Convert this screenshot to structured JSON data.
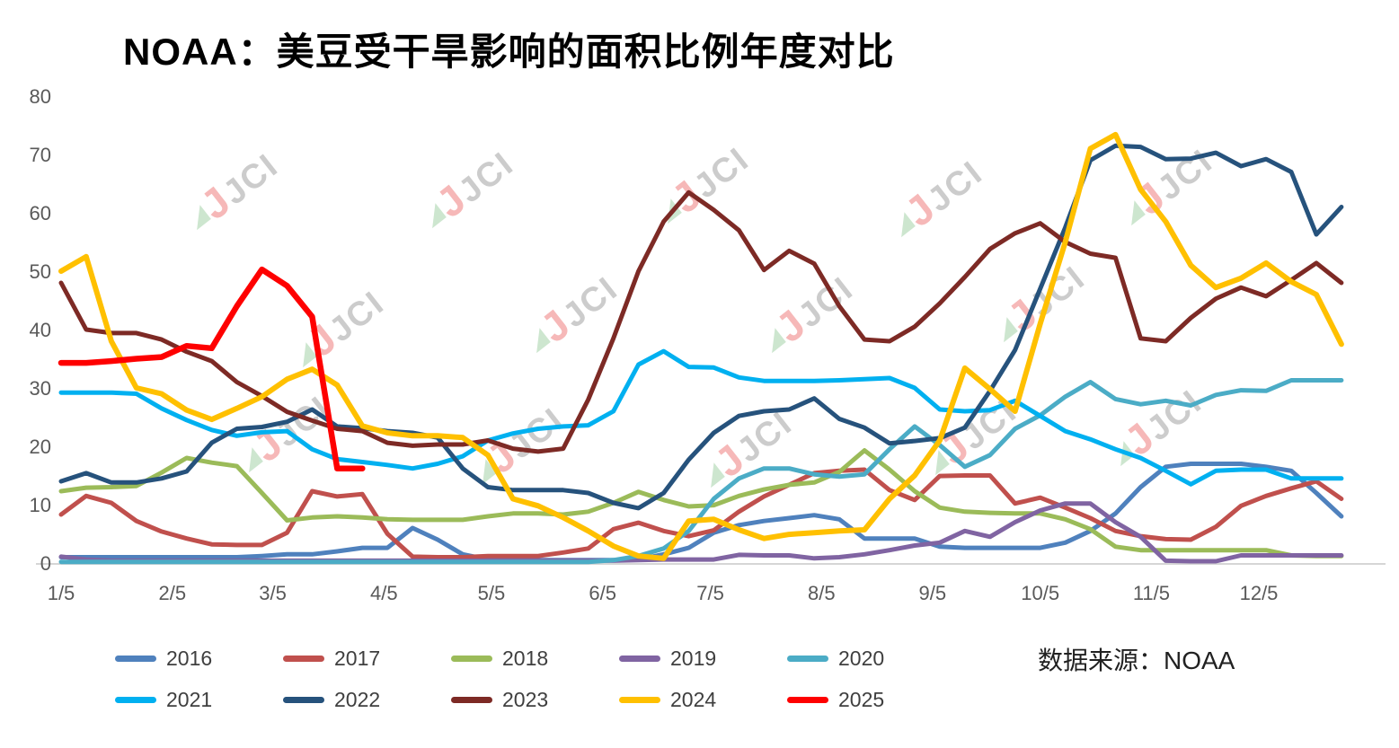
{
  "title": "NOAA：美豆受干旱影响的面积比例年度对比",
  "source_note": "数据来源：NOAA",
  "watermark": {
    "leaf": "◢",
    "accent": "J",
    "label": "JCI"
  },
  "chart_data": {
    "type": "line",
    "title": "NOAA：美豆受干旱影响的面积比例年度对比",
    "xlabel": "",
    "ylabel": "",
    "ylim": [
      0,
      80
    ],
    "grid": false,
    "legend_position": "bottom",
    "y_ticks": [
      0,
      10,
      20,
      30,
      40,
      50,
      60,
      70,
      80
    ],
    "x_ticks": [
      {
        "label": "1/5",
        "week": 0
      },
      {
        "label": "2/5",
        "week": 4.43
      },
      {
        "label": "3/5",
        "week": 8.43
      },
      {
        "label": "4/5",
        "week": 12.86
      },
      {
        "label": "5/5",
        "week": 17.14
      },
      {
        "label": "6/5",
        "week": 21.57
      },
      {
        "label": "7/5",
        "week": 25.86
      },
      {
        "label": "8/5",
        "week": 30.29
      },
      {
        "label": "9/5",
        "week": 34.71
      },
      {
        "label": "10/5",
        "week": 39.0
      },
      {
        "label": "11/5",
        "week": 43.43
      },
      {
        "label": "12/5",
        "week": 47.71
      }
    ],
    "x_unit": "weekly points from Jan 5 to late Dec (52 weeks)",
    "y_unit": "percent of US soybean area affected by drought (%)",
    "series": [
      {
        "name": "2016",
        "color": "#4F81BD",
        "width": 5,
        "start_week": 0,
        "values": [
          1,
          1,
          1,
          1,
          1,
          1,
          1,
          1,
          1.2,
          1.5,
          1.5,
          2,
          2.6,
          2.6,
          6,
          4,
          1.5,
          0.6,
          0.5,
          0.5,
          0.5,
          0.5,
          0.5,
          0.6,
          1.5,
          2.6,
          5.2,
          6.5,
          7.2,
          7.7,
          8.2,
          7.5,
          4.2,
          4.2,
          4.2,
          2.8,
          2.6,
          2.6,
          2.6,
          2.6,
          3.5,
          5.5,
          8.5,
          13,
          16.5,
          17,
          17,
          17,
          16.5,
          15.8,
          12,
          8
        ]
      },
      {
        "name": "2017",
        "color": "#C0504D",
        "width": 5,
        "start_week": 0,
        "values": [
          8.3,
          11.5,
          10.3,
          7.2,
          5.4,
          4.2,
          3.2,
          3.1,
          3.1,
          5.2,
          12.3,
          11.4,
          11.8,
          5,
          1.1,
          1,
          1,
          1.2,
          1.2,
          1.2,
          1.8,
          2.5,
          5.8,
          6.9,
          5.5,
          4.6,
          5.6,
          8.8,
          11.4,
          13.4,
          15.4,
          15.8,
          16,
          12.5,
          10.8,
          14.9,
          15,
          15,
          10.2,
          11.2,
          9.5,
          7.7,
          5.5,
          4.6,
          4.1,
          4,
          6.2,
          9.8,
          11.5,
          12.8,
          14,
          11
        ]
      },
      {
        "name": "2018",
        "color": "#9BBB59",
        "width": 5,
        "start_week": 0,
        "values": [
          12.3,
          12.9,
          13,
          13.2,
          15.5,
          18,
          17.2,
          16.6,
          12,
          7.3,
          7.8,
          8,
          7.8,
          7.5,
          7.4,
          7.4,
          7.4,
          8,
          8.5,
          8.5,
          8.3,
          8.8,
          10.3,
          12.2,
          10.8,
          9.7,
          9.9,
          11.5,
          12.6,
          13.4,
          13.8,
          15.6,
          19.3,
          16,
          12.3,
          9.5,
          8.8,
          8.6,
          8.5,
          8.5,
          7.5,
          5.8,
          2.8,
          2.2,
          2.2,
          2.2,
          2.2,
          2.2,
          2.2,
          1.3,
          1.2,
          1.2
        ]
      },
      {
        "name": "2019",
        "color": "#8064A2",
        "width": 5,
        "start_week": 0,
        "values": [
          1.1,
          0.6,
          0.4,
          0.4,
          0.4,
          0.4,
          0.4,
          0.4,
          0.4,
          0.4,
          0.4,
          0.4,
          0.4,
          0.4,
          0.4,
          0.4,
          0.4,
          0.4,
          0.4,
          0.4,
          0.4,
          0.4,
          0.4,
          0.5,
          0.6,
          0.6,
          0.6,
          1.4,
          1.3,
          1.3,
          0.8,
          1,
          1.5,
          2.2,
          3,
          3.5,
          5.5,
          4.5,
          7,
          9,
          10.2,
          10.2,
          7,
          4.5,
          0.4,
          0.3,
          0.3,
          1.3,
          1.3,
          1.3,
          1.3,
          1.3
        ]
      },
      {
        "name": "2020",
        "color": "#4BACC6",
        "width": 5,
        "start_week": 0,
        "values": [
          0.2,
          0.2,
          0.2,
          0.2,
          0.2,
          0.2,
          0.2,
          0.2,
          0.2,
          0.2,
          0.2,
          0.2,
          0.2,
          0.2,
          0.2,
          0.2,
          0.2,
          0.2,
          0.2,
          0.2,
          0.2,
          0.2,
          0.5,
          1.2,
          2.5,
          5.5,
          11,
          14.5,
          16.2,
          16.2,
          15.2,
          14.8,
          15.2,
          19.5,
          23.4,
          20.2,
          16.5,
          18.5,
          23,
          25.3,
          28.5,
          31,
          28.1,
          27.2,
          27.8,
          27,
          28.8,
          29.6,
          29.5,
          31.3,
          31.3,
          31.3
        ]
      },
      {
        "name": "2021",
        "color": "#00B0F0",
        "width": 5,
        "start_week": 0,
        "values": [
          29.2,
          29.2,
          29.2,
          29,
          26.5,
          24.5,
          22.8,
          21.8,
          22.4,
          22.6,
          19.5,
          17.8,
          17.3,
          16.8,
          16.2,
          17,
          18.3,
          21,
          22.2,
          23,
          23.4,
          23.6,
          26,
          34,
          36.3,
          33.6,
          33.5,
          31.8,
          31.2,
          31.2,
          31.2,
          31.3,
          31.5,
          31.7,
          30,
          26.3,
          26,
          26.2,
          27.8,
          25.2,
          22.6,
          21.2,
          19.5,
          18,
          15.8,
          13.5,
          15.8,
          16,
          16,
          14.5,
          14.5,
          14.5
        ]
      },
      {
        "name": "2022",
        "color": "#26527C",
        "width": 5,
        "start_week": 0,
        "values": [
          14,
          15.4,
          13.8,
          13.8,
          14.5,
          15.7,
          20.6,
          23,
          23.3,
          24.2,
          26.3,
          23.4,
          23.1,
          22.6,
          22.3,
          21.5,
          16.2,
          13,
          12.5,
          12.5,
          12.5,
          12,
          10.3,
          9.4,
          12,
          17.7,
          22.3,
          25.2,
          26,
          26.3,
          28.2,
          24.7,
          23.2,
          20.5,
          20.9,
          21.4,
          23.2,
          29.5,
          36.5,
          47,
          57.5,
          69,
          71.5,
          71.3,
          69.2,
          69.3,
          70.3,
          68,
          69.2,
          67,
          56.3,
          61
        ]
      },
      {
        "name": "2023",
        "color": "#7D2A25",
        "width": 5,
        "start_week": 0,
        "values": [
          48,
          40,
          39.4,
          39.4,
          38.3,
          36.2,
          34.6,
          31,
          28.6,
          25.9,
          24.4,
          23,
          22.6,
          20.6,
          20.1,
          20.3,
          20.3,
          21,
          19.6,
          19.1,
          19.6,
          28,
          38.5,
          50,
          58.5,
          63.5,
          60.5,
          57,
          50.2,
          53.5,
          51.3,
          44,
          38.3,
          38,
          40.5,
          44.5,
          49,
          53.8,
          56.5,
          58.2,
          55,
          53,
          52.3,
          38.5,
          38,
          42,
          45.3,
          47.2,
          45.7,
          48.5,
          51.4,
          48
        ]
      },
      {
        "name": "2024",
        "color": "#FFC000",
        "width": 6,
        "start_week": 0,
        "values": [
          50,
          52.5,
          38,
          30,
          29,
          26.2,
          24.6,
          26.5,
          28.5,
          31.5,
          33.2,
          30.5,
          23.5,
          22.3,
          21.8,
          21.8,
          21.5,
          18.5,
          11,
          9.8,
          7.8,
          5.5,
          2.9,
          1.2,
          0.8,
          7.2,
          7.5,
          5.7,
          4.2,
          4.9,
          5.2,
          5.5,
          5.7,
          11,
          15,
          21,
          33.4,
          29.8,
          26,
          41,
          55,
          71,
          73.4,
          64,
          58.5,
          51,
          47.2,
          48.8,
          51.4,
          48.2,
          46,
          37.5
        ]
      },
      {
        "name": "2025",
        "color": "#FE0000",
        "width": 6.5,
        "start_week": 0,
        "values": [
          34.3,
          34.3,
          34.6,
          35,
          35.3,
          37.2,
          36.8,
          44,
          50.3,
          47.5,
          42.2,
          16.2,
          16.2
        ]
      }
    ]
  }
}
